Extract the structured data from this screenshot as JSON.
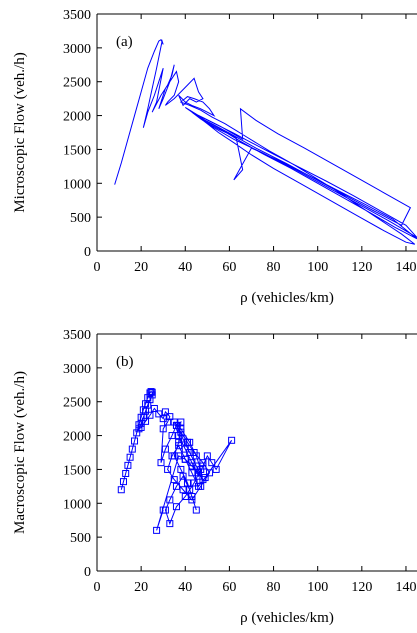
{
  "chart_data": [
    {
      "type": "line",
      "panel_label": "(a)",
      "xlabel": "ρ (vehicles/km)",
      "ylabel": "Microscopic Flow (veh./h)",
      "xlim": [
        0,
        145
      ],
      "ylim": [
        0,
        3500
      ],
      "xticks": [
        0,
        20,
        40,
        60,
        80,
        100,
        120,
        140
      ],
      "yticks": [
        0,
        500,
        1000,
        1500,
        2000,
        2500,
        3000,
        3500
      ],
      "grid": false,
      "markers": false,
      "color": "#0000ff",
      "series": [
        {
          "x": [
            8,
            11,
            14,
            17,
            20,
            23,
            26,
            28,
            29,
            30,
            29.5,
            27,
            25,
            23,
            21,
            23,
            26,
            28,
            30,
            27,
            25,
            29,
            32,
            34,
            35,
            33,
            30,
            28,
            31,
            34,
            36,
            37,
            35,
            32,
            31,
            35,
            38,
            41,
            44,
            46,
            48,
            45,
            42,
            39,
            37,
            40,
            43,
            47,
            50,
            53,
            51,
            48,
            44,
            41,
            38,
            42,
            47,
            52,
            58,
            63,
            68,
            73,
            78,
            84,
            90,
            96,
            102,
            108,
            114,
            120,
            126,
            132,
            138,
            144,
            140,
            130,
            118,
            105,
            92,
            80,
            70,
            62,
            55,
            50,
            46,
            42,
            47,
            55,
            63,
            66,
            62,
            70,
            78,
            88,
            98,
            110,
            122,
            134,
            145,
            135,
            124,
            112,
            100,
            88,
            76,
            65,
            56,
            49,
            44,
            40,
            46,
            54,
            62,
            70,
            80,
            92,
            104,
            116,
            128,
            140,
            145,
            132,
            118,
            104,
            90,
            75,
            62,
            53,
            47,
            43,
            48,
            56,
            66,
            65,
            72,
            82,
            94,
            106,
            118,
            130,
            142,
            138,
            125,
            112,
            99,
            86,
            72,
            60,
            52,
            46
          ],
          "y": [
            980,
            1300,
            1650,
            2000,
            2350,
            2700,
            2950,
            3100,
            3120,
            3050,
            3100,
            2700,
            2400,
            2100,
            1820,
            2050,
            2300,
            2500,
            2700,
            2200,
            2050,
            2300,
            2450,
            2600,
            2750,
            2500,
            2250,
            2100,
            2400,
            2550,
            2650,
            2500,
            2300,
            2200,
            2150,
            2250,
            2350,
            2450,
            2550,
            2350,
            2250,
            2200,
            2250,
            2150,
            2300,
            2200,
            2150,
            2100,
            2050,
            2000,
            2100,
            2200,
            2250,
            2280,
            2200,
            2150,
            2080,
            1980,
            1880,
            1780,
            1680,
            1580,
            1480,
            1370,
            1260,
            1140,
            1020,
            900,
            770,
            640,
            510,
            380,
            250,
            100,
            130,
            300,
            520,
            760,
            1000,
            1220,
            1420,
            1600,
            1750,
            1880,
            1980,
            2080,
            1950,
            1800,
            1680,
            1200,
            1050,
            1520,
            1400,
            1250,
            1080,
            880,
            680,
            470,
            180,
            350,
            560,
            780,
            1000,
            1220,
            1420,
            1620,
            1800,
            1930,
            2030,
            2120,
            2000,
            1870,
            1740,
            1600,
            1430,
            1230,
            1030,
            820,
            600,
            380,
            200,
            450,
            700,
            950,
            1200,
            1450,
            1650,
            1820,
            1950,
            2050,
            1970,
            1840,
            1650,
            2100,
            1930,
            1730,
            1520,
            1300,
            1080,
            860,
            640,
            380,
            600,
            830,
            1060,
            1290,
            1520,
            1740,
            1880,
            1980
          ]
        }
      ]
    },
    {
      "type": "line",
      "panel_label": "(b)",
      "xlabel": "ρ (vehicles/km)",
      "ylabel": "Macroscopic Flow (veh./h)",
      "xlim": [
        0,
        145
      ],
      "ylim": [
        0,
        3500
      ],
      "xticks": [
        0,
        20,
        40,
        60,
        80,
        100,
        120,
        140
      ],
      "yticks": [
        0,
        500,
        1000,
        1500,
        2000,
        2500,
        3000,
        3500
      ],
      "grid": false,
      "markers": "square",
      "color": "#0000ff",
      "series": [
        {
          "x": [
            11,
            12,
            13,
            14,
            15,
            16,
            17,
            18,
            19,
            20,
            21,
            22,
            23,
            24,
            24.5,
            25,
            25,
            24,
            23,
            22,
            21,
            20,
            19,
            20,
            22,
            24,
            26,
            28,
            30,
            31,
            33,
            32,
            30,
            29,
            31,
            34,
            36,
            38,
            37,
            35,
            38,
            41,
            43,
            45,
            42,
            39,
            36,
            33,
            31,
            33,
            36,
            40,
            44,
            47,
            45,
            42,
            38,
            35,
            37,
            40,
            43,
            46,
            48,
            50,
            52,
            54,
            61,
            49,
            46,
            43,
            40,
            37,
            34,
            32,
            35,
            39,
            43,
            47,
            51,
            48,
            44,
            41,
            38,
            36,
            39,
            42,
            45,
            48,
            46,
            43,
            40,
            37,
            27,
            30
          ],
          "y": [
            1200,
            1320,
            1440,
            1560,
            1680,
            1800,
            1920,
            2040,
            2160,
            2270,
            2380,
            2470,
            2560,
            2630,
            2650,
            2640,
            2600,
            2530,
            2450,
            2360,
            2270,
            2180,
            2100,
            2120,
            2210,
            2300,
            2400,
            2320,
            2250,
            2350,
            2280,
            2200,
            2100,
            1600,
            1800,
            2000,
            2150,
            2200,
            1900,
            1700,
            1500,
            1300,
            1100,
            900,
            1200,
            1400,
            1250,
            1050,
            900,
            700,
            950,
            1100,
            1300,
            1500,
            1700,
            1900,
            2100,
            2200,
            2000,
            1800,
            1600,
            1400,
            1550,
            1700,
            1600,
            1500,
            1930,
            1380,
            1250,
            1450,
            1650,
            1850,
            1700,
            1500,
            1350,
            1200,
            1050,
            1250,
            1450,
            1600,
            1750,
            1900,
            2050,
            2150,
            1950,
            1750,
            1550,
            1350,
            1450,
            1550,
            1650,
            1700,
            600,
            900
          ]
        }
      ]
    }
  ]
}
